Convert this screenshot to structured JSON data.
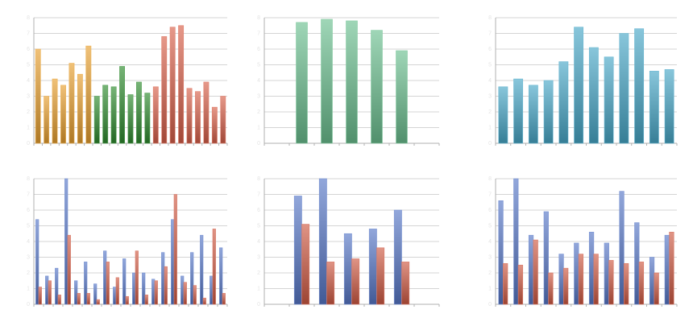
{
  "chart_data": [
    {
      "type": "bar",
      "ylim": [
        0,
        8
      ],
      "yticks": [
        0,
        1,
        2,
        3,
        4,
        5,
        6,
        7,
        8
      ],
      "grid": true,
      "categories": [
        null,
        null,
        null,
        null,
        null,
        null,
        null,
        null,
        null,
        null,
        null,
        null,
        null,
        null,
        null,
        null,
        null,
        null,
        null,
        null,
        null,
        null,
        null
      ],
      "series": [
        {
          "color": "#e8a030",
          "values": [
            6.0,
            3.0,
            4.1,
            3.7,
            5.1,
            4.4,
            6.2,
            null,
            null,
            null,
            null,
            null,
            null,
            null,
            null,
            null,
            null,
            null,
            null,
            null,
            null,
            null,
            null
          ]
        },
        {
          "color": "#2e8b2e",
          "values": [
            null,
            null,
            null,
            null,
            null,
            null,
            null,
            3.0,
            3.7,
            3.6,
            4.9,
            3.1,
            3.9,
            3.2,
            null,
            null,
            null,
            null,
            null,
            null,
            null,
            null,
            null
          ]
        },
        {
          "color": "#d8604a",
          "values": [
            null,
            null,
            null,
            null,
            null,
            null,
            null,
            null,
            null,
            null,
            null,
            null,
            null,
            null,
            3.6,
            6.8,
            7.4,
            7.5,
            3.5,
            3.3,
            3.9,
            2.3,
            3.0
          ]
        }
      ]
    },
    {
      "type": "bar",
      "ylim": [
        0,
        8
      ],
      "yticks": [
        0,
        1,
        2,
        3,
        4,
        5,
        6,
        7,
        8
      ],
      "grid": true,
      "categories": [
        null,
        null,
        null,
        null,
        null,
        null,
        null
      ],
      "series": [
        {
          "color": "#6cc090",
          "values": [
            null,
            7.7,
            7.9,
            7.8,
            7.2,
            5.9,
            null
          ]
        }
      ]
    },
    {
      "type": "bar",
      "ylim": [
        0,
        8
      ],
      "yticks": [
        0,
        1,
        2,
        3,
        4,
        5,
        6,
        7,
        8
      ],
      "grid": true,
      "categories": [
        null,
        null,
        null,
        null,
        null,
        null,
        null,
        null,
        null,
        null,
        null,
        null
      ],
      "series": [
        {
          "color": "#48a8c8",
          "values": [
            3.6,
            4.1,
            3.7,
            4.0,
            5.2,
            7.4,
            6.1,
            5.5,
            7.0,
            7.3,
            4.6,
            4.7
          ]
        }
      ]
    },
    {
      "type": "bar",
      "ylim": [
        0,
        8
      ],
      "yticks": [
        0,
        1,
        2,
        3,
        4,
        5,
        6,
        7,
        8
      ],
      "grid": true,
      "categories": [
        null,
        null,
        null,
        null,
        null,
        null,
        null,
        null,
        null,
        null,
        null,
        null,
        null,
        null,
        null,
        null,
        null,
        null,
        null,
        null
      ],
      "series": [
        {
          "color": "#5878c8",
          "values": [
            5.4,
            1.8,
            2.3,
            8.0,
            1.5,
            2.7,
            1.3,
            3.4,
            1.1,
            2.9,
            2.0,
            2.0,
            1.6,
            3.3,
            5.4,
            1.8,
            3.3,
            4.4,
            1.8,
            3.6
          ]
        },
        {
          "color": "#d05a44",
          "values": [
            1.1,
            1.5,
            0.6,
            4.4,
            0.7,
            0.7,
            0.3,
            2.7,
            1.7,
            0.5,
            3.4,
            0.6,
            1.5,
            2.4,
            7.0,
            1.4,
            1.2,
            0.4,
            4.8,
            0.7
          ]
        }
      ]
    },
    {
      "type": "bar",
      "ylim": [
        0,
        8
      ],
      "yticks": [
        0,
        1,
        2,
        3,
        4,
        5,
        6,
        7,
        8
      ],
      "grid": true,
      "categories": [
        null,
        null,
        null,
        null,
        null,
        null,
        null
      ],
      "series": [
        {
          "color": "#5878c8",
          "values": [
            null,
            6.9,
            8.0,
            4.5,
            4.8,
            6.0,
            null
          ]
        },
        {
          "color": "#d05a44",
          "values": [
            null,
            5.1,
            2.7,
            2.9,
            3.6,
            2.7,
            null
          ]
        }
      ]
    },
    {
      "type": "bar",
      "ylim": [
        0,
        8
      ],
      "yticks": [
        0,
        1,
        2,
        3,
        4,
        5,
        6,
        7,
        8
      ],
      "grid": true,
      "categories": [
        null,
        null,
        null,
        null,
        null,
        null,
        null,
        null,
        null,
        null,
        null,
        null
      ],
      "series": [
        {
          "color": "#5878c8",
          "values": [
            6.6,
            8.0,
            4.4,
            5.9,
            3.2,
            3.9,
            4.6,
            3.9,
            7.2,
            5.2,
            3.0,
            4.4
          ]
        },
        {
          "color": "#d05a44",
          "values": [
            2.6,
            2.5,
            4.1,
            2.0,
            2.3,
            3.2,
            3.2,
            2.8,
            2.6,
            2.7,
            2.0,
            4.6
          ]
        }
      ]
    }
  ]
}
